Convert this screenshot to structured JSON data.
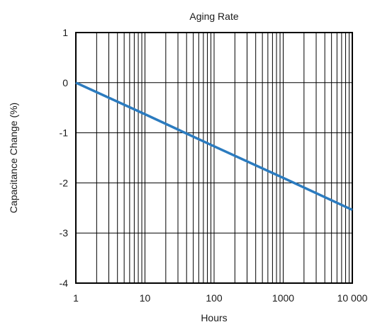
{
  "chart_data": {
    "type": "line",
    "title": "Aging Rate",
    "xlabel": "Hours",
    "ylabel": "Capacitance Change (%)",
    "x_scale": "log",
    "xlim": [
      1,
      10000
    ],
    "ylim": [
      -4,
      1
    ],
    "x_ticks": [
      1,
      10,
      100,
      1000,
      10000
    ],
    "x_tick_labels": [
      "1",
      "10",
      "100",
      "1000",
      "10 000"
    ],
    "y_ticks": [
      1,
      0,
      -1,
      -2,
      -3,
      -4
    ],
    "y_tick_labels": [
      "1",
      "0",
      "-1",
      "-2",
      "-3",
      "-4"
    ],
    "grid": true,
    "legend": "none",
    "series": [
      {
        "color": "#2b7bbf",
        "x": [
          1,
          10,
          100,
          1000,
          10000
        ],
        "y": [
          0,
          -0.63,
          -1.27,
          -1.9,
          -2.54
        ]
      }
    ]
  }
}
